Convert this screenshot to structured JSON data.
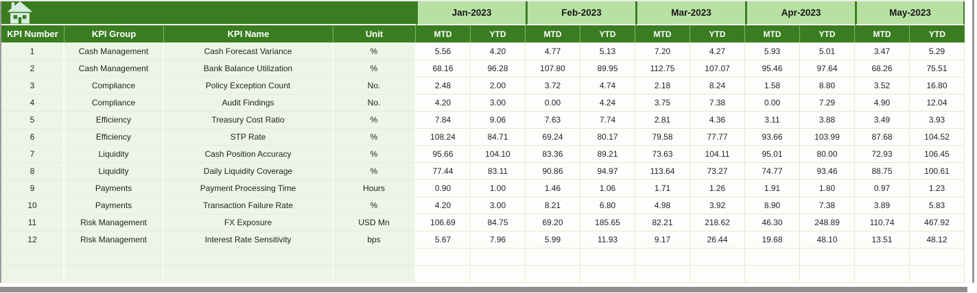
{
  "header": {
    "months": [
      "Jan-2023",
      "Feb-2023",
      "Mar-2023",
      "Apr-2023",
      "May-2023"
    ],
    "period_labels": [
      "MTD",
      "YTD"
    ],
    "column_headers": [
      "KPI Number",
      "KPI Group",
      "KPI Name",
      "Unit"
    ],
    "home_icon": "home-icon"
  },
  "table": {
    "rows": [
      {
        "number": "1",
        "group": "Cash Management",
        "name": "Cash Forecast Variance",
        "unit": "%",
        "values": [
          "5.56",
          "4.20",
          "4.77",
          "5.13",
          "7.20",
          "4.27",
          "5.93",
          "5.01",
          "3.47",
          "5.29"
        ]
      },
      {
        "number": "2",
        "group": "Cash Management",
        "name": "Bank Balance Utilization",
        "unit": "%",
        "values": [
          "68.16",
          "96.28",
          "107.80",
          "89.95",
          "112.75",
          "107.07",
          "95.46",
          "97.64",
          "68.26",
          "75.51"
        ]
      },
      {
        "number": "3",
        "group": "Compliance",
        "name": "Policy Exception Count",
        "unit": "No.",
        "values": [
          "2.48",
          "2.00",
          "3.72",
          "4.74",
          "2.18",
          "8.24",
          "1.58",
          "8.80",
          "3.52",
          "16.80"
        ]
      },
      {
        "number": "4",
        "group": "Compliance",
        "name": "Audit Findings",
        "unit": "No.",
        "values": [
          "4.20",
          "3.00",
          "0.00",
          "4.24",
          "3.75",
          "7.38",
          "0.00",
          "7.29",
          "4.90",
          "12.04"
        ]
      },
      {
        "number": "5",
        "group": "Efficiency",
        "name": "Treasury Cost Ratio",
        "unit": "%",
        "values": [
          "7.84",
          "9.06",
          "7.63",
          "7.74",
          "2.81",
          "4.36",
          "3.11",
          "3.88",
          "3.49",
          "3.93"
        ]
      },
      {
        "number": "6",
        "group": "Efficiency",
        "name": "STP Rate",
        "unit": "%",
        "values": [
          "108.24",
          "84.71",
          "69.24",
          "80.17",
          "79.58",
          "77.77",
          "93.66",
          "103.99",
          "87.68",
          "104.52"
        ]
      },
      {
        "number": "7",
        "group": "Liquidity",
        "name": "Cash Position Accuracy",
        "unit": "%",
        "values": [
          "95.66",
          "104.10",
          "83.36",
          "89.21",
          "73.63",
          "104.11",
          "95.01",
          "80.00",
          "72.93",
          "106.45"
        ]
      },
      {
        "number": "8",
        "group": "Liquidity",
        "name": "Daily Liquidity Coverage",
        "unit": "%",
        "values": [
          "77.44",
          "83.11",
          "90.86",
          "94.97",
          "113.64",
          "73.27",
          "74.77",
          "93.46",
          "88.75",
          "100.61"
        ]
      },
      {
        "number": "9",
        "group": "Payments",
        "name": "Payment Processing Time",
        "unit": "Hours",
        "values": [
          "0.90",
          "1.00",
          "1.46",
          "1.06",
          "1.71",
          "1.26",
          "1.91",
          "1.80",
          "0.97",
          "1.23"
        ]
      },
      {
        "number": "10",
        "group": "Payments",
        "name": "Transaction Failure Rate",
        "unit": "%",
        "values": [
          "4.20",
          "3.00",
          "8.21",
          "6.80",
          "4.98",
          "3.92",
          "8.90",
          "7.38",
          "3.89",
          "5.83"
        ]
      },
      {
        "number": "11",
        "group": "Risk Management",
        "name": "FX Exposure",
        "unit": "USD Mn",
        "values": [
          "106.69",
          "84.75",
          "69.20",
          "185.65",
          "82.21",
          "218.62",
          "46.30",
          "248.89",
          "110.74",
          "467.92"
        ]
      },
      {
        "number": "12",
        "group": "Risk Management",
        "name": "Interest Rate Sensitivity",
        "unit": "bps",
        "values": [
          "5.67",
          "7.96",
          "5.99",
          "11.93",
          "9.17",
          "26.44",
          "19.68",
          "48.10",
          "13.51",
          "48.12"
        ]
      }
    ],
    "empty_row_count": 2
  },
  "colors": {
    "dark_green": "#3A7D21",
    "light_green": "#B7E1A3",
    "row_green": "#EDF5E7",
    "cell_white": "#FDFEFC",
    "grid_line": "#DCEBCE",
    "scrollbar_gray": "#8F8F8F"
  }
}
